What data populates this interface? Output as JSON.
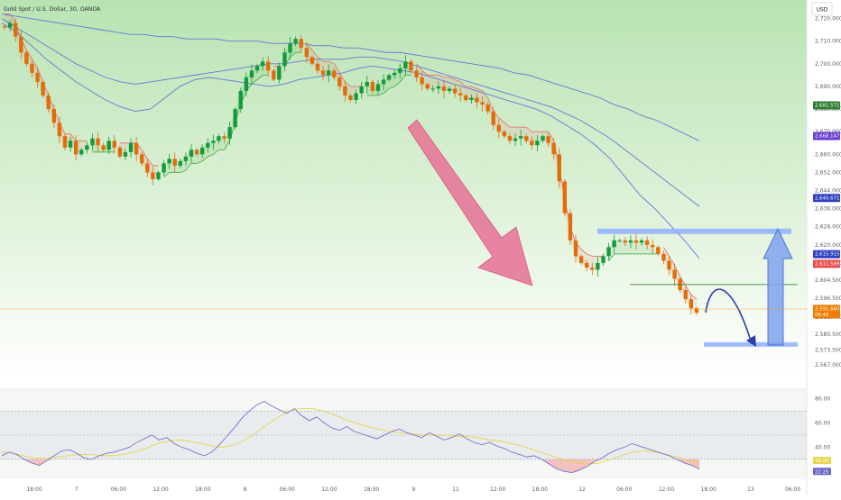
{
  "header": {
    "title": "Gold Spot / U.S. Dollar, 30, OANDA"
  },
  "currency_button": {
    "label": "USD"
  },
  "colors": {
    "bull": "#159a3a",
    "bear": "#e36c0a",
    "ma_blue": "#5b6bd6",
    "trail_up": "#4caf50",
    "trail_down": "#e57373",
    "arrow_pink": "#e6789a",
    "zone_blue": "#8fb0ff",
    "rsi_line": "#6c63c9",
    "rsi_ma": "#e8d44d"
  },
  "chart_data": [
    {
      "type": "candlestick",
      "ylim": [
        2565,
        2725
      ],
      "y_ticks": [
        "2,720.000",
        "2,710.000",
        "2,700.000",
        "2,690.000",
        "2,680.000",
        "2,670.000",
        "2,660.000",
        "2,652.000",
        "2,644.000",
        "2,636.000",
        "2,628.000",
        "2,620.000",
        "2,612.000",
        "2,604.500",
        "2,596.500",
        "2,588.000",
        "2,580.500",
        "2,573.500",
        "2,567.000"
      ],
      "x_ticks": [
        "18:00",
        "7",
        "06:00",
        "12:00",
        "18:00",
        "8",
        "06:00",
        "12:00",
        "18:00",
        "9",
        "11",
        "12:00",
        "18:00",
        "12",
        "06:00",
        "12:00",
        "18:00",
        "13",
        "06:00"
      ],
      "price_tags": [
        {
          "label": "2,681.571",
          "value": 2681.6,
          "color": "#2e7d32"
        },
        {
          "label": "2,668.147",
          "value": 2668.1,
          "color": "#6a3fd6"
        },
        {
          "label": "2,640.671",
          "value": 2640.7,
          "color": "#2f3fc4"
        },
        {
          "label": "2,615.915",
          "value": 2615.9,
          "color": "#2f3fc4"
        },
        {
          "label": "2,611.589",
          "value": 2611.6,
          "color": "#e84b4b"
        },
        {
          "label": "2,591.660",
          "sub": "09:40",
          "value": 2591.7,
          "color": "#f07c00"
        }
      ],
      "path": [
        2716,
        2718,
        2712,
        2705,
        2700,
        2696,
        2692,
        2686,
        2680,
        2674,
        2668,
        2663,
        2666,
        2660,
        2662,
        2664,
        2667,
        2664,
        2662,
        2666,
        2663,
        2659,
        2661,
        2665,
        2660,
        2656,
        2652,
        2649,
        2652,
        2656,
        2658,
        2655,
        2657,
        2659,
        2662,
        2660,
        2663,
        2665,
        2666,
        2668,
        2667,
        2672,
        2680,
        2688,
        2694,
        2697,
        2699,
        2701,
        2697,
        2693,
        2699,
        2705,
        2709,
        2711,
        2707,
        2703,
        2700,
        2697,
        2695,
        2697,
        2694,
        2690,
        2686,
        2684,
        2687,
        2690,
        2692,
        2688,
        2691,
        2693,
        2695,
        2696,
        2698,
        2701,
        2697,
        2694,
        2691,
        2689,
        2689,
        2690,
        2688,
        2689,
        2687,
        2686,
        2684,
        2685,
        2683,
        2682,
        2679,
        2673,
        2670,
        2668,
        2666,
        2667,
        2668,
        2666,
        2664,
        2666,
        2668,
        2665,
        2660,
        2648,
        2634,
        2622,
        2615,
        2612,
        2610,
        2609,
        2612,
        2615,
        2619,
        2622,
        2622,
        2621,
        2622,
        2621,
        2622,
        2620,
        2619,
        2616,
        2613,
        2609,
        2605,
        2600,
        2596,
        2592,
        2590
      ],
      "series": [
        {
          "name": "",
          "values": [
            2718,
            2714,
            2708,
            2702,
            2697,
            2692,
            2688,
            2684,
            2681,
            2679,
            2680,
            2685,
            2690,
            2693,
            2694,
            2693,
            2692,
            2691,
            2690,
            2691,
            2693,
            2694,
            2695,
            2696,
            2698,
            2699,
            2698,
            2697,
            2696,
            2694,
            2692,
            2690,
            2688,
            2686,
            2684,
            2682,
            2680,
            2677,
            2673,
            2669,
            2664,
            2658,
            2650,
            2642,
            2636,
            2629,
            2622,
            2614
          ]
        },
        {
          "name": "",
          "values": [
            2720,
            2716,
            2712,
            2708,
            2704,
            2700,
            2697,
            2694,
            2692,
            2691,
            2692,
            2693,
            2694,
            2695,
            2696,
            2697,
            2698,
            2699,
            2700,
            2700,
            2701,
            2702,
            2702,
            2702,
            2703,
            2703,
            2702,
            2701,
            2699,
            2697,
            2695,
            2693,
            2691,
            2689,
            2687,
            2685,
            2683,
            2681,
            2678,
            2675,
            2671,
            2667,
            2662,
            2657,
            2652,
            2647,
            2642,
            2637
          ]
        },
        {
          "name": "",
          "values": [
            2722,
            2721,
            2720,
            2719,
            2718,
            2717,
            2716,
            2715,
            2714,
            2713,
            2713,
            2712,
            2712,
            2711,
            2711,
            2711,
            2710,
            2710,
            2710,
            2709,
            2709,
            2709,
            2708,
            2708,
            2707,
            2707,
            2706,
            2705,
            2705,
            2704,
            2703,
            2702,
            2701,
            2700,
            2699,
            2698,
            2696,
            2695,
            2693,
            2691,
            2689,
            2687,
            2685,
            2682,
            2680,
            2677,
            2675,
            2672,
            2669,
            2666
          ]
        }
      ],
      "annotations": {
        "horizontal_line": 2602.5,
        "resistance_zone": 2626,
        "support_zone": 2576
      }
    },
    {
      "type": "line",
      "name": "RSI",
      "ylim": [
        15,
        85
      ],
      "y_ticks": [
        "80.00",
        "60.00",
        "40.00"
      ],
      "levels": [
        70,
        50,
        30
      ],
      "value_tags": [
        {
          "label": "28.29",
          "value": 28.29,
          "color": "#e8d44d"
        },
        {
          "label": "22.25",
          "value": 22.25,
          "color": "#6c63c9"
        }
      ],
      "values": [
        33,
        36,
        34,
        30,
        27,
        25,
        29,
        33,
        37,
        38,
        35,
        31,
        30,
        33,
        35,
        36,
        38,
        40,
        44,
        47,
        50,
        46,
        48,
        43,
        40,
        38,
        35,
        33,
        36,
        42,
        49,
        56,
        64,
        70,
        75,
        78,
        74,
        71,
        68,
        72,
        66,
        62,
        65,
        60,
        56,
        54,
        57,
        53,
        51,
        49,
        47,
        50,
        53,
        55,
        52,
        50,
        48,
        52,
        49,
        46,
        48,
        51,
        47,
        44,
        42,
        44,
        41,
        39,
        36,
        34,
        32,
        33,
        30,
        26,
        22,
        20,
        19,
        21,
        24,
        28,
        31,
        35,
        38,
        40,
        43,
        41,
        39,
        37,
        35,
        33,
        30,
        27,
        25,
        22
      ],
      "ma_values": [
        36,
        35,
        33,
        31,
        31,
        32,
        33,
        34,
        34,
        33,
        33,
        34,
        36,
        39,
        43,
        45,
        46,
        45,
        43,
        41,
        40,
        42,
        46,
        52,
        59,
        65,
        70,
        72,
        72,
        70,
        67,
        63,
        60,
        57,
        55,
        53,
        52,
        51,
        50,
        50,
        50,
        49,
        49,
        48,
        46,
        45,
        43,
        41,
        38,
        35,
        32,
        29,
        27,
        26,
        27,
        30,
        33,
        36,
        37,
        36,
        34,
        32,
        29,
        28
      ]
    }
  ]
}
